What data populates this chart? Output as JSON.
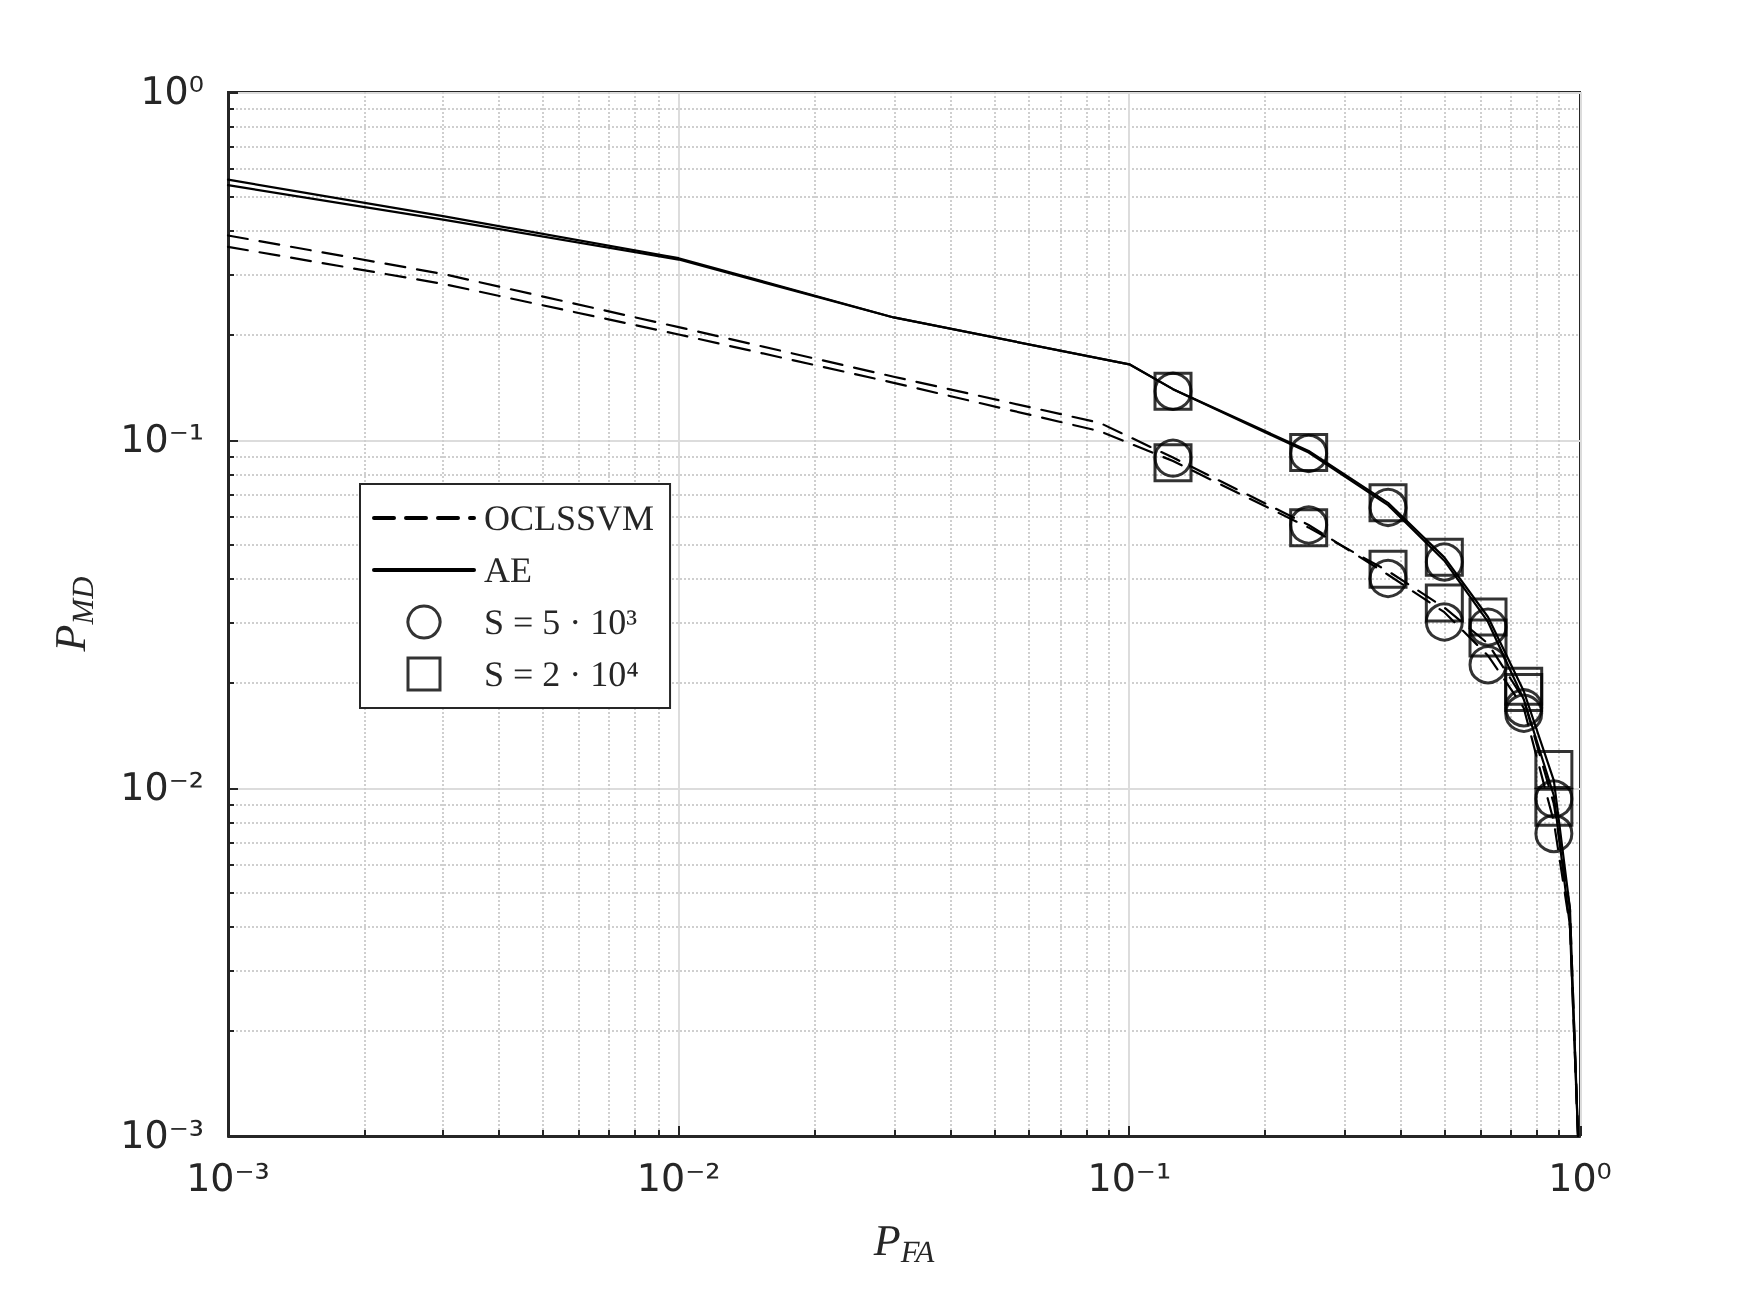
{
  "chart_data": {
    "type": "line",
    "xlabel": "P$_{FA}$",
    "ylabel": "P$_{MD}$",
    "log": "xy",
    "grid": true,
    "legend": "left",
    "xlim": [
      0.001,
      1
    ],
    "ylim": [
      0.001,
      1
    ],
    "xticks": [
      {
        "value": 0.001,
        "label": "10⁻³"
      },
      {
        "value": 0.01,
        "label": "10⁻²"
      },
      {
        "value": 0.1,
        "label": "10⁻¹"
      },
      {
        "value": 1,
        "label": "10⁰"
      }
    ],
    "yticks": [
      {
        "value": 0.001,
        "label": "10⁻³"
      },
      {
        "value": 0.01,
        "label": "10⁻²"
      },
      {
        "value": 0.1,
        "label": "10⁻¹"
      },
      {
        "value": 1,
        "label": "10⁰"
      }
    ],
    "series": [
      {
        "name": "OCLSSVM",
        "line_style": "dashed",
        "marker": "none",
        "color": "#000000",
        "x": [
          0.001,
          0.003,
          0.01,
          0.03,
          0.086,
          0.125,
          0.25,
          0.375,
          0.5,
          0.625,
          0.75,
          0.875,
          0.95,
          0.99
        ],
        "values": [
          0.387,
          0.3,
          0.211,
          0.152,
          0.112,
          0.089,
          0.057,
          0.041,
          0.032,
          0.024,
          0.017,
          0.008,
          0.004,
          0.001
        ]
      },
      {
        "line_style": "dashed",
        "marker": "none",
        "color": "#000000",
        "x": [
          0.001,
          0.003,
          0.01,
          0.03,
          0.086,
          0.125,
          0.25,
          0.375,
          0.5,
          0.625,
          0.75,
          0.875,
          0.95,
          0.99
        ],
        "values": [
          0.359,
          0.281,
          0.201,
          0.146,
          0.106,
          0.087,
          0.056,
          0.042,
          0.033,
          0.026,
          0.018,
          0.009,
          0.0045,
          0.001
        ]
      },
      {
        "name": "AE",
        "line_style": "solid",
        "marker": "none",
        "color": "#000000",
        "x": [
          0.001,
          0.003,
          0.01,
          0.03,
          0.1,
          0.125,
          0.25,
          0.375,
          0.5,
          0.625,
          0.75,
          0.875,
          0.95,
          0.99
        ],
        "values": [
          0.56,
          0.44,
          0.333,
          0.225,
          0.165,
          0.14,
          0.092,
          0.065,
          0.045,
          0.03,
          0.018,
          0.0095,
          0.004,
          0.001
        ]
      },
      {
        "line_style": "solid",
        "marker": "none",
        "color": "#000000",
        "x": [
          0.001,
          0.003,
          0.01,
          0.03,
          0.1,
          0.125,
          0.25,
          0.375,
          0.5,
          0.625,
          0.75,
          0.875,
          0.95,
          0.99
        ],
        "values": [
          0.54,
          0.43,
          0.33,
          0.225,
          0.165,
          0.14,
          0.093,
          0.066,
          0.046,
          0.031,
          0.019,
          0.0105,
          0.0045,
          0.001
        ]
      },
      {
        "name": "S = 5 · 10³",
        "type": "scatter",
        "marker": "circle",
        "color": "#000000",
        "x": [
          0.125,
          0.25,
          0.375,
          0.5,
          0.625,
          0.75,
          0.875
        ],
        "values": [
          0.0887,
          0.057,
          0.04,
          0.03,
          0.0226,
          0.017,
          0.0074
        ]
      },
      {
        "type": "scatter",
        "marker": "circle",
        "color": "#000000",
        "x": [
          0.125,
          0.25,
          0.375,
          0.5,
          0.625,
          0.75,
          0.875
        ],
        "values": [
          0.138,
          0.0915,
          0.064,
          0.0446,
          0.029,
          0.0164,
          0.0093
        ]
      },
      {
        "name": "S = 2 · 10⁴",
        "type": "scatter",
        "marker": "square",
        "color": "#000000",
        "x": [
          0.125,
          0.25,
          0.375,
          0.5,
          0.625,
          0.75,
          0.875
        ],
        "values": [
          0.086,
          0.056,
          0.0425,
          0.034,
          0.027,
          0.0188,
          0.0088
        ]
      },
      {
        "type": "scatter",
        "marker": "square",
        "color": "#000000",
        "x": [
          0.125,
          0.25,
          0.375,
          0.5,
          0.625,
          0.75,
          0.875
        ],
        "values": [
          0.138,
          0.092,
          0.066,
          0.046,
          0.031,
          0.0196,
          0.0113
        ]
      }
    ]
  }
}
